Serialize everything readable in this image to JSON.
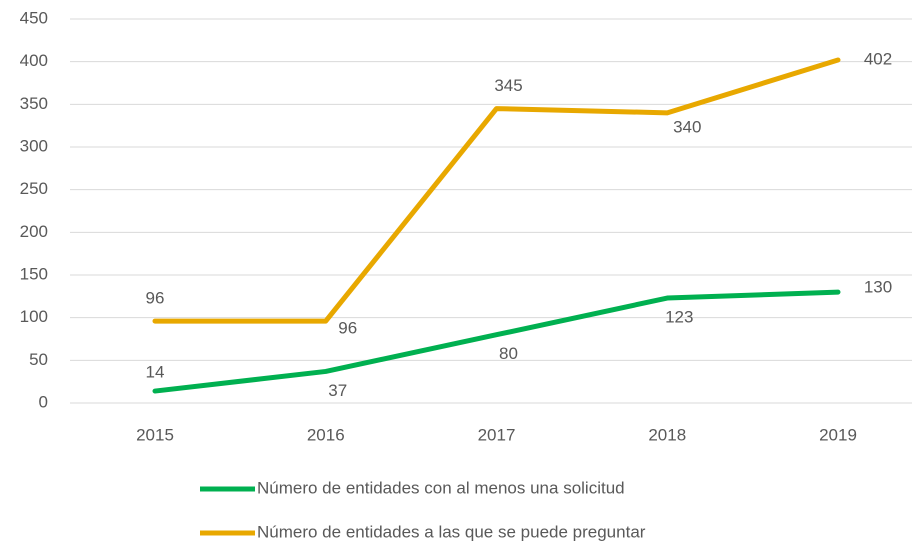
{
  "chart_data": {
    "type": "line",
    "categories": [
      "2015",
      "2016",
      "2017",
      "2018",
      "2019"
    ],
    "series": [
      {
        "name": "Número de entidades con al menos una solicitud",
        "color": "#00b050",
        "values": [
          14,
          37,
          80,
          123,
          130
        ]
      },
      {
        "name": "Número de entidades a las que se puede preguntar",
        "color": "#e8a800",
        "values": [
          96,
          96,
          345,
          340,
          402
        ]
      }
    ],
    "ylim": [
      0,
      450
    ],
    "yticks": [
      0,
      50,
      100,
      150,
      200,
      250,
      300,
      350,
      400,
      450
    ],
    "grid": true
  }
}
